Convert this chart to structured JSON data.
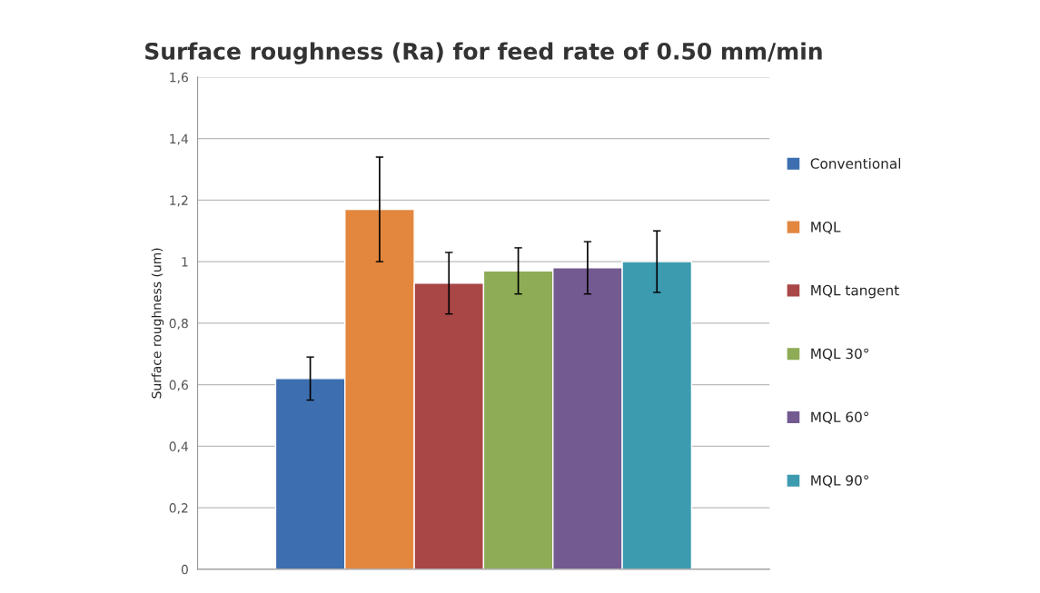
{
  "chart_data": {
    "type": "bar",
    "title": "Surface roughness (Ra) for feed rate of 0.50 mm/min",
    "ylabel": "Surface roughness (um)",
    "categories": [
      null
    ],
    "series": [
      {
        "name": "Conventional",
        "color": "#3d6fb0",
        "values": [
          0.62
        ],
        "errors": [
          0.07
        ]
      },
      {
        "name": "MQL",
        "color": "#e3873f",
        "values": [
          1.17
        ],
        "errors": [
          0.17
        ]
      },
      {
        "name": "MQL tangent",
        "color": "#a94646",
        "values": [
          0.93
        ],
        "errors": [
          0.1
        ]
      },
      {
        "name": "MQL 30°",
        "color": "#8eac55",
        "values": [
          0.97
        ],
        "errors": [
          0.075
        ]
      },
      {
        "name": "MQL 60°",
        "color": "#735a91",
        "values": [
          0.98
        ],
        "errors": [
          0.085
        ]
      },
      {
        "name": "MQL 90°",
        "color": "#3d9bb0",
        "values": [
          1.0
        ],
        "errors": [
          0.1
        ]
      }
    ],
    "ylim": [
      0,
      1.6
    ],
    "yticks": [
      {
        "value": 0,
        "label": "0"
      },
      {
        "value": 0.2,
        "label": "0,2"
      },
      {
        "value": 0.4,
        "label": "0,4"
      },
      {
        "value": 0.6,
        "label": "0,6"
      },
      {
        "value": 0.8,
        "label": "0,8"
      },
      {
        "value": 1,
        "label": "1"
      },
      {
        "value": 1.2,
        "label": "1,2"
      },
      {
        "value": 1.4,
        "label": "1,4"
      },
      {
        "value": 1.6,
        "label": "1,6"
      }
    ],
    "grid": "y",
    "legend": "right"
  }
}
